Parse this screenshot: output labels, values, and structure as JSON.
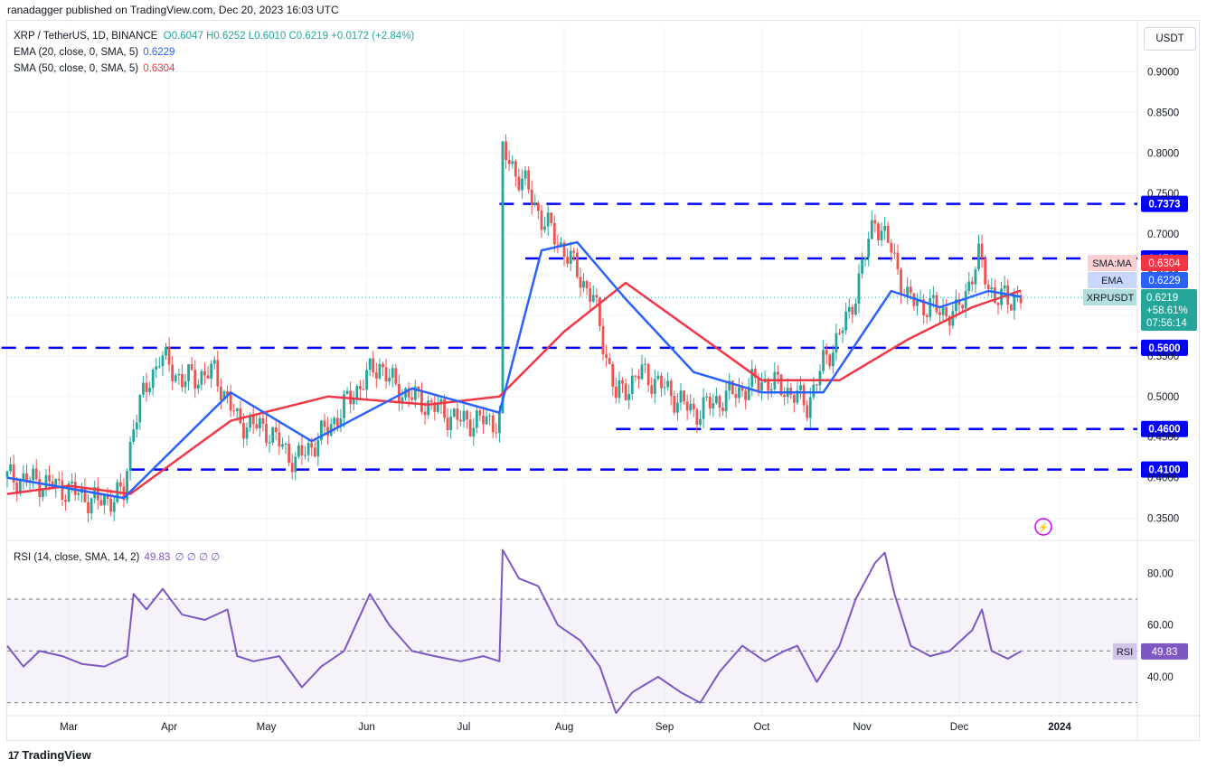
{
  "header": {
    "published_line": "ranadagger published on TradingView.com, Dec 20, 2023 16:03 UTC"
  },
  "legend": {
    "symbol": "XRP / TetherUS, 1D, BINANCE",
    "ohlc": "O0.6047 H0.6252 L0.6010 C0.6219 +0.0172 (+2.84%)",
    "ema_label": "EMA (20, close, 0, SMA, 5)",
    "ema_value": "0.6229",
    "sma_label": "SMA (50, close, 0, SMA, 5)",
    "sma_value": "0.6304",
    "rsi_label": "RSI (14, close, SMA, 14, 2)",
    "rsi_value": "49.83",
    "rsi_extra": "∅ ∅ ∅ ∅"
  },
  "toolbar": {
    "currency_button": "USDT"
  },
  "footer": {
    "brand": "TradingView",
    "logo_icon": "tradingview-logo-icon"
  },
  "colors": {
    "candle_up": "#26a69a",
    "candle_down": "#ef5350",
    "ema": "#2962ff",
    "sma": "#f23645",
    "level_line": "#0000ff",
    "rsi": "#7e57c2",
    "last_price": "#26a69a"
  },
  "chart_data": [
    {
      "type": "candlestick",
      "title": "XRP / TetherUS, 1D, BINANCE",
      "x_tick_labels": [
        "Mar",
        "Apr",
        "May",
        "Jun",
        "Jul",
        "Aug",
        "Sep",
        "Oct",
        "Nov",
        "Dec",
        "2024"
      ],
      "y_tick_labels": [
        "0.9000",
        "0.8500",
        "0.8000",
        "0.7500",
        "0.7000",
        "0.6500",
        "0.6000",
        "0.5500",
        "0.5000",
        "0.4500",
        "0.4000",
        "0.3500"
      ],
      "ylim": [
        0.325,
        0.955
      ],
      "close_path": [
        [
          "2023-02-10",
          0.4
        ],
        [
          "2023-02-20",
          0.395
        ],
        [
          "2023-03-01",
          0.385
        ],
        [
          "2023-03-10",
          0.37
        ],
        [
          "2023-03-18",
          0.38
        ],
        [
          "2023-03-21",
          0.47
        ],
        [
          "2023-03-29",
          0.55
        ],
        [
          "2023-04-05",
          0.52
        ],
        [
          "2023-04-15",
          0.53
        ],
        [
          "2023-04-22",
          0.47
        ],
        [
          "2023-05-01",
          0.46
        ],
        [
          "2023-05-10",
          0.42
        ],
        [
          "2023-05-20",
          0.46
        ],
        [
          "2023-05-31",
          0.52
        ],
        [
          "2023-06-05",
          0.54
        ],
        [
          "2023-06-10",
          0.51
        ],
        [
          "2023-06-20",
          0.49
        ],
        [
          "2023-06-30",
          0.47
        ],
        [
          "2023-07-12",
          0.47
        ],
        [
          "2023-07-13",
          0.8
        ],
        [
          "2023-07-20",
          0.76
        ],
        [
          "2023-07-25",
          0.72
        ],
        [
          "2023-08-01",
          0.68
        ],
        [
          "2023-08-10",
          0.62
        ],
        [
          "2023-08-17",
          0.5
        ],
        [
          "2023-08-25",
          0.53
        ],
        [
          "2023-09-01",
          0.51
        ],
        [
          "2023-09-10",
          0.48
        ],
        [
          "2023-09-20",
          0.5
        ],
        [
          "2023-10-01",
          0.52
        ],
        [
          "2023-10-08",
          0.51
        ],
        [
          "2023-10-15",
          0.49
        ],
        [
          "2023-10-20",
          0.54
        ],
        [
          "2023-10-28",
          0.6
        ],
        [
          "2023-11-05",
          0.72
        ],
        [
          "2023-11-10",
          0.68
        ],
        [
          "2023-11-15",
          0.62
        ],
        [
          "2023-11-22",
          0.61
        ],
        [
          "2023-11-30",
          0.6
        ],
        [
          "2023-12-07",
          0.67
        ],
        [
          "2023-12-12",
          0.62
        ],
        [
          "2023-12-20",
          0.6219
        ]
      ],
      "ema20_path": [
        [
          "2023-02-10",
          0.4
        ],
        [
          "2023-03-18",
          0.375
        ],
        [
          "2023-04-20",
          0.505
        ],
        [
          "2023-05-15",
          0.445
        ],
        [
          "2023-06-15",
          0.51
        ],
        [
          "2023-07-12",
          0.48
        ],
        [
          "2023-07-25",
          0.68
        ],
        [
          "2023-08-05",
          0.69
        ],
        [
          "2023-08-20",
          0.62
        ],
        [
          "2023-09-10",
          0.53
        ],
        [
          "2023-10-01",
          0.505
        ],
        [
          "2023-10-20",
          0.505
        ],
        [
          "2023-11-10",
          0.63
        ],
        [
          "2023-11-25",
          0.61
        ],
        [
          "2023-12-10",
          0.63
        ],
        [
          "2023-12-20",
          0.6229
        ]
      ],
      "sma50_path": [
        [
          "2023-02-10",
          0.38
        ],
        [
          "2023-03-01",
          0.39
        ],
        [
          "2023-03-20",
          0.38
        ],
        [
          "2023-04-20",
          0.47
        ],
        [
          "2023-05-20",
          0.5
        ],
        [
          "2023-06-20",
          0.49
        ],
        [
          "2023-07-12",
          0.5
        ],
        [
          "2023-08-01",
          0.58
        ],
        [
          "2023-08-20",
          0.64
        ],
        [
          "2023-09-10",
          0.58
        ],
        [
          "2023-10-01",
          0.52
        ],
        [
          "2023-10-25",
          0.52
        ],
        [
          "2023-11-15",
          0.57
        ],
        [
          "2023-12-05",
          0.61
        ],
        [
          "2023-12-20",
          0.6304
        ]
      ],
      "level_lines": [
        {
          "label": "0.7373",
          "value": 0.7373,
          "from": "2023-07-12"
        },
        {
          "label": "0.6700",
          "value": 0.67,
          "from": "2023-07-20"
        },
        {
          "label": "0.5600",
          "value": 0.56,
          "from": "2023-02-01"
        },
        {
          "label": "0.4600",
          "value": 0.46,
          "from": "2023-08-17"
        },
        {
          "label": "0.4100",
          "value": 0.41,
          "from": "2023-03-20"
        }
      ],
      "price_tags": [
        {
          "name": "SMA:MA",
          "value": "0.6304"
        },
        {
          "name": "EMA",
          "value": "0.6229"
        },
        {
          "name": "XRPUSDT",
          "value": "0.6219",
          "change": "+58.61%",
          "countdown": "07:56:14"
        }
      ]
    },
    {
      "type": "line",
      "title": "RSI (14, close, SMA, 14, 2)",
      "y_tick_labels": [
        "80.00",
        "60.00",
        "40.00"
      ],
      "ylim": [
        25,
        92
      ],
      "bands": [
        30,
        50,
        70
      ],
      "rsi_path": [
        [
          "2023-02-10",
          52
        ],
        [
          "2023-02-15",
          44
        ],
        [
          "2023-02-20",
          50
        ],
        [
          "2023-02-27",
          48
        ],
        [
          "2023-03-05",
          45
        ],
        [
          "2023-03-12",
          44
        ],
        [
          "2023-03-19",
          48
        ],
        [
          "2023-03-21",
          72
        ],
        [
          "2023-03-25",
          66
        ],
        [
          "2023-03-30",
          74
        ],
        [
          "2023-04-05",
          64
        ],
        [
          "2023-04-12",
          62
        ],
        [
          "2023-04-19",
          66
        ],
        [
          "2023-04-22",
          48
        ],
        [
          "2023-04-27",
          46
        ],
        [
          "2023-05-05",
          48
        ],
        [
          "2023-05-12",
          36
        ],
        [
          "2023-05-18",
          44
        ],
        [
          "2023-05-25",
          50
        ],
        [
          "2023-06-02",
          72
        ],
        [
          "2023-06-08",
          60
        ],
        [
          "2023-06-15",
          50
        ],
        [
          "2023-06-22",
          48
        ],
        [
          "2023-06-30",
          46
        ],
        [
          "2023-07-07",
          48
        ],
        [
          "2023-07-12",
          46
        ],
        [
          "2023-07-13",
          89
        ],
        [
          "2023-07-18",
          78
        ],
        [
          "2023-07-24",
          75
        ],
        [
          "2023-07-30",
          60
        ],
        [
          "2023-08-06",
          54
        ],
        [
          "2023-08-12",
          44
        ],
        [
          "2023-08-17",
          26
        ],
        [
          "2023-08-22",
          34
        ],
        [
          "2023-08-30",
          40
        ],
        [
          "2023-09-06",
          34
        ],
        [
          "2023-09-12",
          30
        ],
        [
          "2023-09-18",
          42
        ],
        [
          "2023-09-25",
          52
        ],
        [
          "2023-10-02",
          46
        ],
        [
          "2023-10-08",
          50
        ],
        [
          "2023-10-12",
          52
        ],
        [
          "2023-10-18",
          38
        ],
        [
          "2023-10-25",
          52
        ],
        [
          "2023-10-30",
          70
        ],
        [
          "2023-11-05",
          84
        ],
        [
          "2023-11-08",
          88
        ],
        [
          "2023-11-11",
          72
        ],
        [
          "2023-11-16",
          52
        ],
        [
          "2023-11-22",
          48
        ],
        [
          "2023-11-28",
          50
        ],
        [
          "2023-12-05",
          58
        ],
        [
          "2023-12-08",
          66
        ],
        [
          "2023-12-11",
          50
        ],
        [
          "2023-12-16",
          47
        ],
        [
          "2023-12-20",
          49.83
        ]
      ]
    }
  ],
  "time_axis": {
    "start": "2023-02-10",
    "end": "2024-01-25"
  }
}
